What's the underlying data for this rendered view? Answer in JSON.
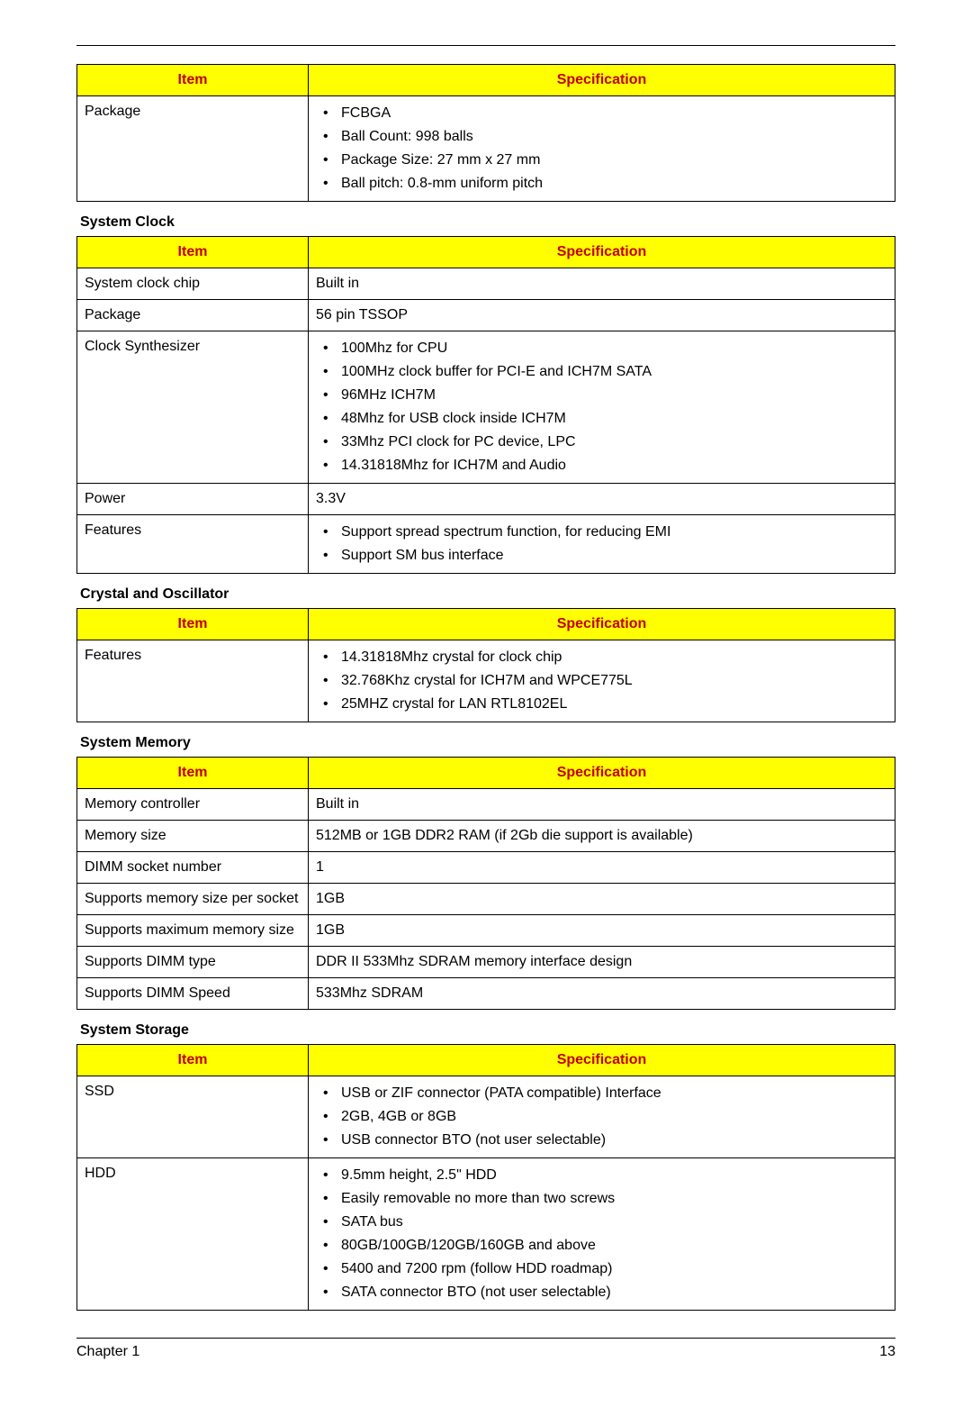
{
  "colors": {
    "header_bg": "#ffff00",
    "header_text": "#c00000",
    "border": "#000000",
    "page_bg": "#ffffff",
    "text": "#000000"
  },
  "headers": {
    "item": "Item",
    "spec": "Specification"
  },
  "tables": [
    {
      "title": null,
      "rows": [
        {
          "item": "Package",
          "spec_type": "list",
          "spec": [
            "FCBGA",
            "Ball Count: 998 balls",
            "Package Size: 27 mm x 27 mm",
            "Ball pitch: 0.8-mm uniform pitch"
          ]
        }
      ]
    },
    {
      "title": "System Clock",
      "rows": [
        {
          "item": "System clock chip",
          "spec_type": "text",
          "spec": "Built in"
        },
        {
          "item": "Package",
          "spec_type": "text",
          "spec": "56 pin TSSOP"
        },
        {
          "item": "Clock Synthesizer",
          "spec_type": "list",
          "spec": [
            "100Mhz for CPU",
            "100MHz clock buffer for PCI-E and ICH7M SATA",
            "96MHz ICH7M",
            "48Mhz for USB clock inside ICH7M",
            "33Mhz PCI clock for PC device, LPC",
            "14.31818Mhz for ICH7M and Audio"
          ]
        },
        {
          "item": "Power",
          "spec_type": "text",
          "spec": "3.3V"
        },
        {
          "item": "Features",
          "spec_type": "list",
          "spec": [
            "Support spread spectrum function, for reducing EMI",
            "Support SM bus interface"
          ]
        }
      ]
    },
    {
      "title": "Crystal and Oscillator",
      "rows": [
        {
          "item": "Features",
          "spec_type": "list",
          "spec": [
            "14.31818Mhz crystal for clock chip",
            "32.768Khz crystal for ICH7M and WPCE775L",
            "25MHZ crystal for LAN RTL8102EL"
          ]
        }
      ]
    },
    {
      "title": "System Memory",
      "rows": [
        {
          "item": "Memory controller",
          "spec_type": "text",
          "spec": "Built in"
        },
        {
          "item": "Memory size",
          "spec_type": "text",
          "spec": "512MB or 1GB DDR2 RAM (if 2Gb die support is available)"
        },
        {
          "item": "DIMM socket number",
          "spec_type": "text",
          "spec": "1"
        },
        {
          "item": "Supports memory size per socket",
          "spec_type": "text",
          "spec": "1GB"
        },
        {
          "item": "Supports maximum memory size",
          "spec_type": "text",
          "spec": "1GB"
        },
        {
          "item": "Supports DIMM type",
          "spec_type": "text",
          "spec": "DDR II 533Mhz SDRAM memory interface design"
        },
        {
          "item": "Supports DIMM Speed",
          "spec_type": "text",
          "spec": "533Mhz SDRAM"
        }
      ]
    },
    {
      "title": "System Storage",
      "rows": [
        {
          "item": "SSD",
          "spec_type": "list",
          "spec": [
            "USB or ZIF connector (PATA compatible) Interface",
            "2GB, 4GB or 8GB",
            "USB connector BTO (not user selectable)"
          ]
        },
        {
          "item": "HDD",
          "spec_type": "list",
          "spec": [
            "9.5mm height, 2.5\" HDD",
            "Easily removable no more than two screws",
            "SATA bus",
            "80GB/100GB/120GB/160GB and above",
            "5400 and 7200 rpm (follow HDD roadmap)",
            "SATA connector BTO (not user selectable)"
          ]
        }
      ]
    }
  ],
  "footer": {
    "chapter": "Chapter 1",
    "page_no": "13"
  }
}
